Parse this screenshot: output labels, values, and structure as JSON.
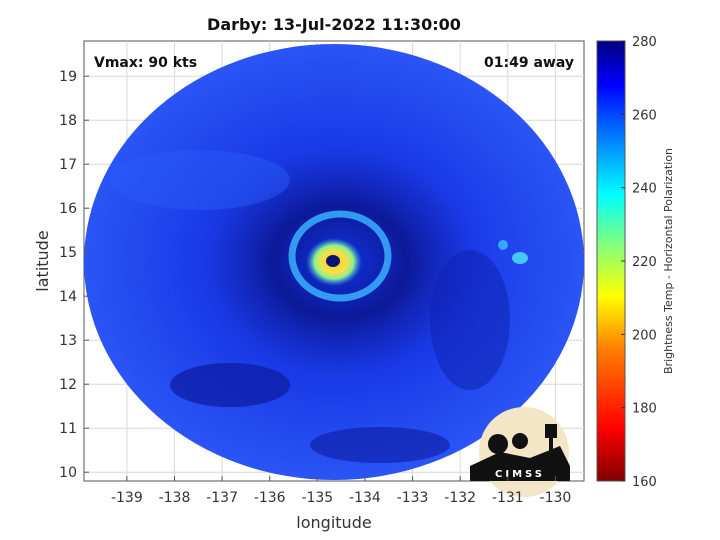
{
  "title": "Darby: 13-Jul-2022 11:30:00",
  "vmax_text": "Vmax: 90 kts",
  "time_away_text": "01:49 away",
  "map": {
    "x_label": "longitude",
    "y_label": "latitude",
    "x_ticks": [
      "-139",
      "-138",
      "-137",
      "-136",
      "-135",
      "-134",
      "-133",
      "-132",
      "-131",
      "-130"
    ],
    "y_ticks": [
      "19",
      "18",
      "17",
      "16",
      "15",
      "14",
      "13",
      "12",
      "11",
      "10"
    ],
    "x_range": [
      -139.9,
      -129.4
    ],
    "y_range": [
      9.8,
      19.8
    ],
    "storm_center": {
      "lon": -134.65,
      "lat": 14.85
    }
  },
  "colorbar": {
    "label": "Brightness Temp - Horizontal Polarization",
    "ticks": [
      "280",
      "260",
      "240",
      "220",
      "200",
      "180",
      "160"
    ],
    "range": [
      160,
      280
    ],
    "colormap": [
      "#7f0000",
      "#ff0000",
      "#ff7f00",
      "#ffff00",
      "#7fff7f",
      "#00ffff",
      "#007fff",
      "#0000ff",
      "#00007f"
    ]
  },
  "logo": {
    "text": "CIMSS"
  },
  "colors": {
    "background_blue": "#1a3be8",
    "deep_blue": "#0d1aa8",
    "eye_yellow": "#f4e04a",
    "eye_ring": "#4cd4ff"
  }
}
